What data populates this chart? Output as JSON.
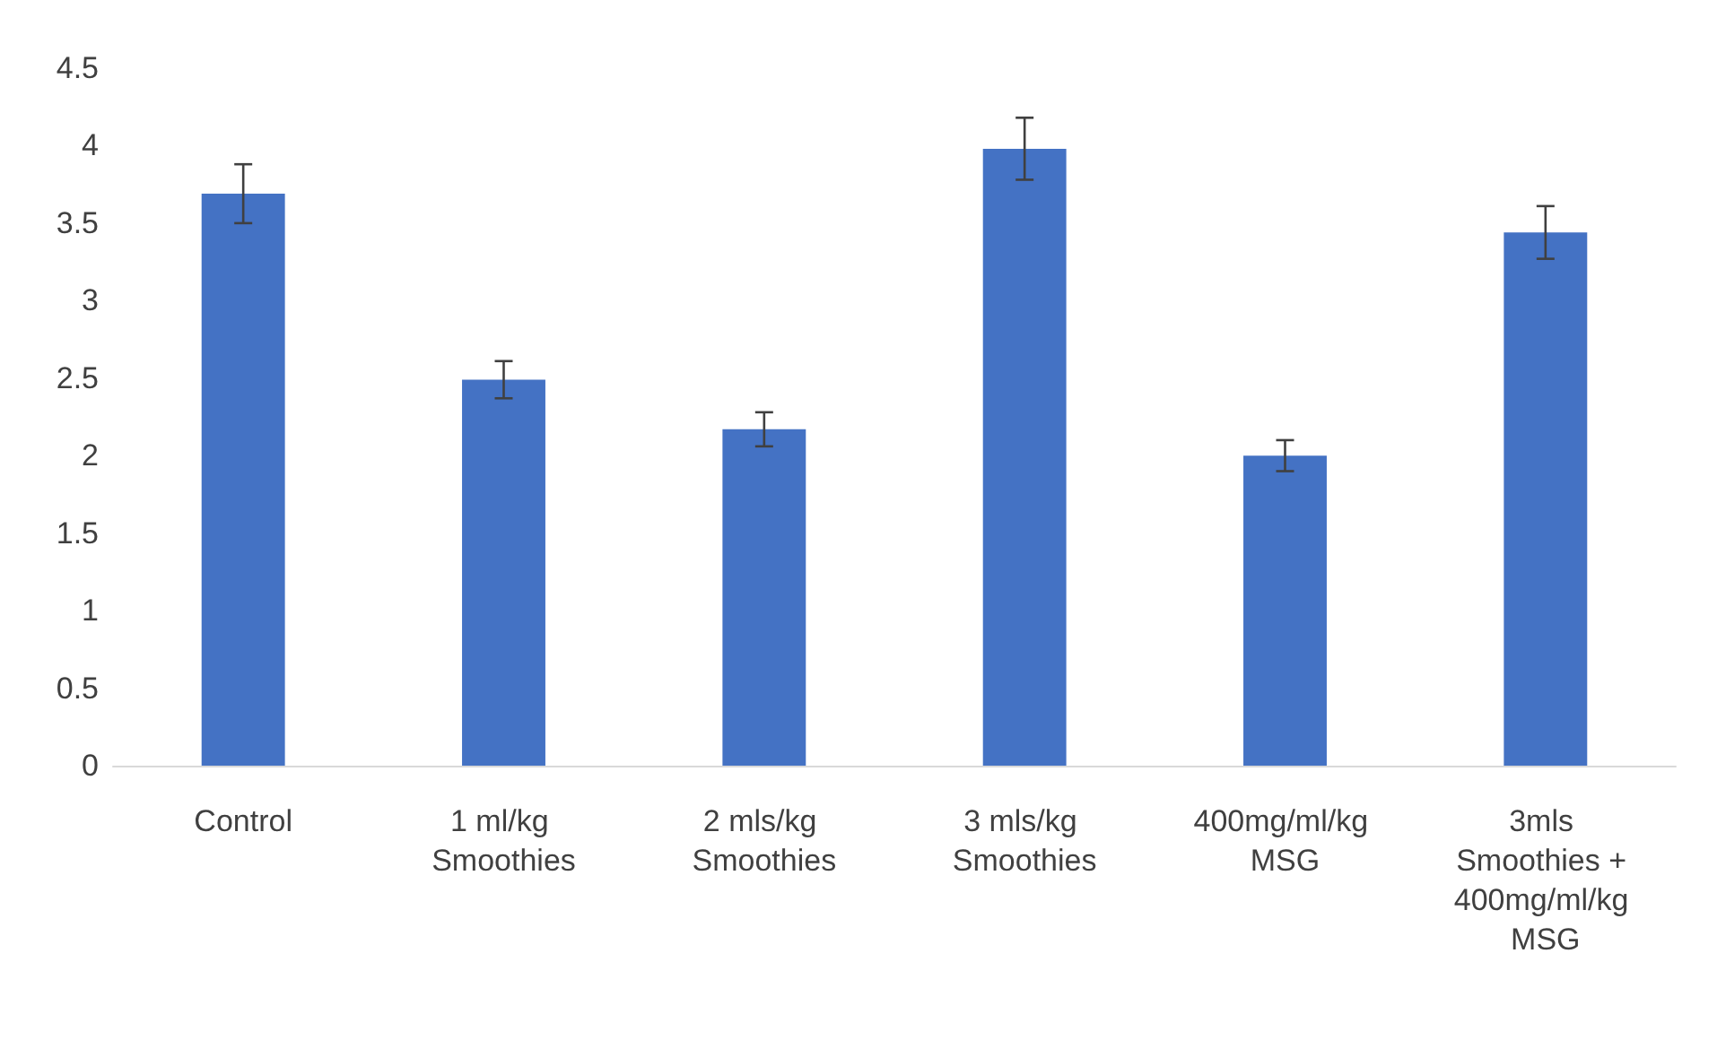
{
  "chart_data": {
    "type": "bar",
    "categories": [
      "Control",
      "1 ml/kg Smoothies",
      "2 mls/kg Smoothies",
      "3 mls/kg Smoothies",
      "400mg/ml/kg MSG",
      "3mls Smoothies + 400mg/ml/kg MSG"
    ],
    "values": [
      3.69,
      2.49,
      2.17,
      3.98,
      2.0,
      3.44
    ],
    "errors": [
      0.19,
      0.12,
      0.11,
      0.2,
      0.1,
      0.17
    ],
    "color": "#4472c4",
    "ylim": [
      0,
      4.5
    ],
    "yticks": [
      0,
      0.5,
      1,
      1.5,
      2,
      2.5,
      3,
      3.5,
      4,
      4.5
    ],
    "grid": false,
    "legend": false
  }
}
